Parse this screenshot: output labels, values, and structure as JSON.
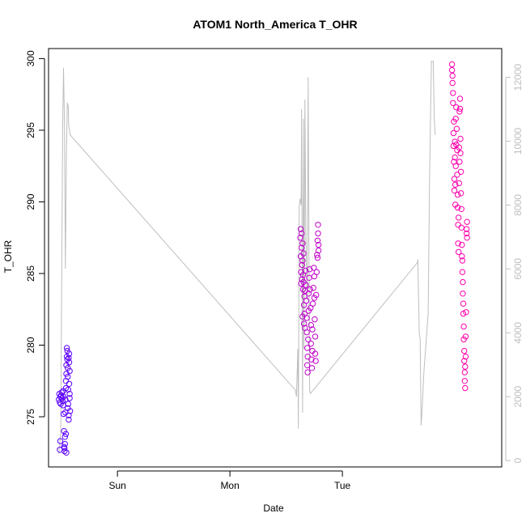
{
  "chart_data": {
    "type": "scatter",
    "title": "ATOM1 North_America T_OHR",
    "xlabel": "Date",
    "ylabel": "T_OHR",
    "x_ticks": [
      "Sun",
      "Mon",
      "Tue"
    ],
    "y_ticks": [
      275,
      280,
      285,
      290,
      295,
      300
    ],
    "y_right_ticks": [
      0,
      2000,
      4000,
      6000,
      8000,
      10000,
      12000
    ],
    "xlim_hours": [
      -14.7,
      82
    ],
    "ylim": [
      271.5,
      300.7
    ],
    "ylim_right": [
      -200,
      12900
    ],
    "colors": {
      "frame": "#000000",
      "secondary": "#bebebe",
      "points_start": "#5a00ff",
      "points_end": "#ff00aa"
    },
    "series": [
      {
        "type": "scatter",
        "values_hours_y": [
          [
            -12.5,
            276.2
          ],
          [
            -12.4,
            276.6
          ],
          [
            -12.3,
            276.0
          ],
          [
            -12.2,
            276.4
          ],
          [
            -12.1,
            275.9
          ],
          [
            -12.0,
            276.5
          ],
          [
            -12.3,
            272.7
          ],
          [
            -12.2,
            273.3
          ],
          [
            -11.9,
            276.7
          ],
          [
            -11.8,
            276.3
          ],
          [
            -11.7,
            276.1
          ],
          [
            -11.6,
            276.8
          ],
          [
            -11.5,
            276.4
          ],
          [
            -11.6,
            275.8
          ],
          [
            -11.5,
            275.2
          ],
          [
            -11.4,
            274.0
          ],
          [
            -11.4,
            272.9
          ],
          [
            -11.3,
            272.6
          ],
          [
            -11.3,
            272.8
          ],
          [
            -11.2,
            273.1
          ],
          [
            -11.2,
            273.6
          ],
          [
            -11.1,
            275.3
          ],
          [
            -11.1,
            276.2
          ],
          [
            -11.0,
            277.0
          ],
          [
            -11.0,
            277.5
          ],
          [
            -10.9,
            278.0
          ],
          [
            -10.9,
            278.6
          ],
          [
            -10.8,
            279.2
          ],
          [
            -10.8,
            279.8
          ],
          [
            -10.7,
            279.6
          ],
          [
            -10.7,
            279.0
          ],
          [
            -10.6,
            278.4
          ],
          [
            -10.6,
            277.8
          ],
          [
            -10.5,
            276.9
          ],
          [
            -10.5,
            275.9
          ],
          [
            -10.4,
            275.1
          ],
          [
            -10.4,
            274.8
          ],
          [
            -10.3,
            279.4
          ],
          [
            -10.3,
            278.8
          ],
          [
            -10.2,
            278.2
          ],
          [
            -10.2,
            276.6
          ],
          [
            -10.1,
            275.4
          ],
          [
            -10.9,
            272.5
          ],
          [
            -11.0,
            273.8
          ],
          [
            -10.6,
            275.6
          ],
          [
            -10.4,
            279.1
          ],
          [
            -10.3,
            277.3
          ],
          [
            -10.2,
            276.3
          ]
        ]
      },
      {
        "type": "scatter",
        "values_hours_y": [
          [
            39.0,
            287.5
          ],
          [
            39.1,
            288.1
          ],
          [
            39.1,
            286.2
          ],
          [
            39.2,
            285.1
          ],
          [
            39.2,
            284.3
          ],
          [
            39.3,
            287.8
          ],
          [
            39.3,
            286.8
          ],
          [
            39.4,
            285.6
          ],
          [
            39.4,
            284.6
          ],
          [
            39.5,
            287.1
          ],
          [
            39.5,
            285.9
          ],
          [
            39.6,
            284.9
          ],
          [
            39.6,
            283.9
          ],
          [
            39.7,
            286.4
          ],
          [
            39.7,
            284.4
          ],
          [
            39.8,
            282.8
          ],
          [
            39.8,
            281.5
          ],
          [
            39.9,
            283.4
          ],
          [
            39.9,
            282.2
          ],
          [
            40.0,
            281.2
          ],
          [
            40.1,
            285.2
          ],
          [
            40.2,
            284.2
          ],
          [
            40.3,
            283.1
          ],
          [
            40.4,
            281.9
          ],
          [
            40.4,
            280.9
          ],
          [
            40.5,
            279.8
          ],
          [
            40.5,
            278.6
          ],
          [
            40.6,
            278.1
          ],
          [
            40.6,
            279.2
          ],
          [
            40.7,
            280.4
          ],
          [
            40.8,
            282.4
          ],
          [
            40.8,
            283.6
          ],
          [
            40.9,
            284.7
          ],
          [
            41.0,
            285.3
          ],
          [
            41.1,
            283.9
          ],
          [
            41.2,
            282.6
          ],
          [
            41.3,
            281.4
          ],
          [
            41.3,
            280.1
          ],
          [
            41.4,
            279.0
          ],
          [
            41.5,
            278.4
          ],
          [
            41.6,
            279.6
          ],
          [
            41.6,
            281.1
          ],
          [
            41.7,
            282.9
          ],
          [
            41.8,
            284.0
          ],
          [
            41.9,
            285.4
          ],
          [
            42.0,
            284.8
          ],
          [
            42.0,
            283.3
          ],
          [
            42.1,
            281.8
          ],
          [
            42.2,
            280.6
          ],
          [
            42.2,
            279.4
          ],
          [
            42.3,
            278.9
          ],
          [
            42.4,
            283.5
          ],
          [
            42.5,
            285.1
          ],
          [
            42.6,
            286.3
          ],
          [
            42.7,
            287.3
          ],
          [
            42.8,
            288.4
          ],
          [
            42.8,
            287.8
          ],
          [
            42.9,
            287.0
          ],
          [
            42.9,
            286.6
          ],
          [
            42.7,
            286.1
          ],
          [
            39.5,
            282.0
          ],
          [
            40.0,
            283.8
          ]
        ]
      },
      {
        "type": "scatter",
        "values_hours_y": [
          [
            71.4,
            299.6
          ],
          [
            71.4,
            299.2
          ],
          [
            71.5,
            298.8
          ],
          [
            71.5,
            298.3
          ],
          [
            71.6,
            297.6
          ],
          [
            71.6,
            296.9
          ],
          [
            71.7,
            294.8
          ],
          [
            71.7,
            293.9
          ],
          [
            71.8,
            295.6
          ],
          [
            71.8,
            292.8
          ],
          [
            71.9,
            291.6
          ],
          [
            71.9,
            290.8
          ],
          [
            72.0,
            294.2
          ],
          [
            72.0,
            293.1
          ],
          [
            72.1,
            291.2
          ],
          [
            72.1,
            289.8
          ],
          [
            72.2,
            292.5
          ],
          [
            72.2,
            295.8
          ],
          [
            72.3,
            296.6
          ],
          [
            72.4,
            295.1
          ],
          [
            72.5,
            293.6
          ],
          [
            72.5,
            291.9
          ],
          [
            72.6,
            290.5
          ],
          [
            72.6,
            289.6
          ],
          [
            72.7,
            288.4
          ],
          [
            72.7,
            287.1
          ],
          [
            72.8,
            286.5
          ],
          [
            72.8,
            288.9
          ],
          [
            72.9,
            291.3
          ],
          [
            72.9,
            293.8
          ],
          [
            73.0,
            296.3
          ],
          [
            73.1,
            297.2
          ],
          [
            73.1,
            296.5
          ],
          [
            73.2,
            294.4
          ],
          [
            73.2,
            293.4
          ],
          [
            73.3,
            292.1
          ],
          [
            73.3,
            290.6
          ],
          [
            73.4,
            289.5
          ],
          [
            73.4,
            288.2
          ],
          [
            73.5,
            287.0
          ],
          [
            73.6,
            285.9
          ],
          [
            73.6,
            285.1
          ],
          [
            73.7,
            284.4
          ],
          [
            73.7,
            283.6
          ],
          [
            73.8,
            282.9
          ],
          [
            73.8,
            282.2
          ],
          [
            73.9,
            281.3
          ],
          [
            73.9,
            280.4
          ],
          [
            74.0,
            279.6
          ],
          [
            74.0,
            278.9
          ],
          [
            74.1,
            278.1
          ],
          [
            74.1,
            277.5
          ],
          [
            74.2,
            277.0
          ],
          [
            74.2,
            278.5
          ],
          [
            74.3,
            279.2
          ],
          [
            74.3,
            280.6
          ],
          [
            74.5,
            287.8
          ],
          [
            74.5,
            288.1
          ],
          [
            74.6,
            288.6
          ],
          [
            74.6,
            287.5
          ],
          [
            74.4,
            282.3
          ],
          [
            73.0,
            292.8
          ],
          [
            73.5,
            286.2
          ],
          [
            72.3,
            294.0
          ]
        ]
      }
    ],
    "line_series": {
      "axis": "right",
      "values_hours_y": [
        [
          -12.5,
          200
        ],
        [
          -12.1,
          900
        ],
        [
          -11.9,
          5500
        ],
        [
          -11.7,
          10300
        ],
        [
          -11.5,
          12300
        ],
        [
          -11.3,
          10500
        ],
        [
          -11.1,
          6000
        ],
        [
          -10.9,
          9500
        ],
        [
          -10.7,
          11200
        ],
        [
          -10.5,
          11100
        ],
        [
          -10.4,
          10500
        ],
        [
          -10.3,
          10400
        ],
        [
          -10.1,
          10200
        ],
        [
          38.0,
          2200
        ],
        [
          38.2,
          2000
        ],
        [
          38.5,
          3500
        ],
        [
          38.6,
          1000
        ],
        [
          38.8,
          8000
        ],
        [
          39.0,
          8200
        ],
        [
          39.2,
          8000
        ],
        [
          39.3,
          11000
        ],
        [
          39.5,
          1500
        ],
        [
          39.7,
          10700
        ],
        [
          39.8,
          3500
        ],
        [
          40.0,
          11300
        ],
        [
          40.2,
          7000
        ],
        [
          40.5,
          5000
        ],
        [
          40.7,
          12000
        ],
        [
          40.9,
          5700
        ],
        [
          41.0,
          2200
        ],
        [
          41.2,
          2100
        ],
        [
          64.0,
          6200
        ],
        [
          64.1,
          6300
        ],
        [
          64.4,
          4000
        ],
        [
          64.6,
          3800
        ],
        [
          64.8,
          1100
        ],
        [
          65.0,
          1600
        ],
        [
          65.4,
          2800
        ],
        [
          66.3,
          4600
        ],
        [
          66.6,
          8800
        ],
        [
          67.0,
          12500
        ],
        [
          67.4,
          12500
        ],
        [
          67.6,
          10700
        ],
        [
          67.8,
          10200
        ]
      ]
    }
  }
}
